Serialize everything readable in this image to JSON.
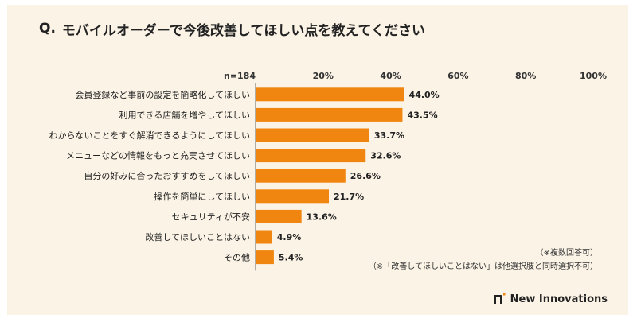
{
  "title": {
    "prefix": "Q.",
    "text": "モバイルオーダーで今後改善してほしい点を教えてください"
  },
  "chart_data": {
    "type": "bar",
    "orientation": "horizontal",
    "sample_size": "n=184",
    "categories": [
      "会員登録など事前の設定を簡略化してほしい",
      "利用できる店舗を増やしてほしい",
      "わからないことをすぐ解消できるようにしてほしい",
      "メニューなどの情報をもっと充実させてほしい",
      "自分の好みに合ったおすすめをしてほしい",
      "操作を簡単にしてほしい",
      "セキュリティが不安",
      "改善してほしいことはない",
      "その他"
    ],
    "values": [
      44.0,
      43.5,
      33.7,
      32.6,
      26.6,
      21.7,
      13.6,
      4.9,
      5.4
    ],
    "value_labels": [
      "44.0%",
      "43.5%",
      "33.7%",
      "32.6%",
      "26.6%",
      "21.7%",
      "13.6%",
      "4.9%",
      "5.4%"
    ],
    "xlim": [
      0,
      100
    ],
    "x_ticks": [
      20,
      40,
      60,
      80,
      100
    ],
    "x_tick_labels": [
      "20%",
      "40%",
      "60%",
      "80%",
      "100%"
    ],
    "axis_position": "top",
    "grid": false,
    "bar_color": "#f0860f"
  },
  "notes": [
    "（※複数回答可）",
    "（※「改善してほしいことはない」は他選択肢と同時選択不可）"
  ],
  "brand": {
    "name": "New Innovations",
    "color": "#222222"
  },
  "colors": {
    "background": "#fbf3e6",
    "axis": "#666666"
  }
}
